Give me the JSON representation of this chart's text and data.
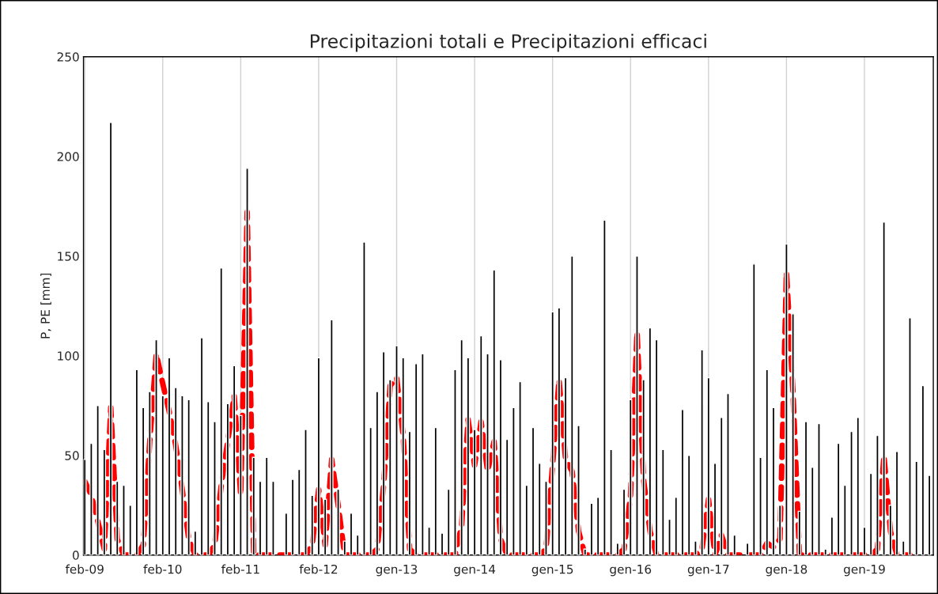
{
  "chart_data": {
    "type": "bar",
    "title": "Precipitazioni totali e Precipitazioni efficaci",
    "ylabel": "P, PE [mm]",
    "categories": [
      "feb-09",
      null,
      null,
      null,
      null,
      null,
      null,
      null,
      null,
      null,
      null,
      null,
      "feb-10",
      null,
      null,
      null,
      null,
      null,
      null,
      null,
      null,
      null,
      null,
      null,
      "feb-11",
      null,
      null,
      null,
      null,
      null,
      null,
      null,
      null,
      null,
      null,
      null,
      "feb-12",
      null,
      null,
      null,
      null,
      null,
      null,
      null,
      null,
      null,
      null,
      null,
      "gen-13",
      null,
      null,
      null,
      null,
      null,
      null,
      null,
      null,
      null,
      null,
      null,
      "gen-14",
      null,
      null,
      null,
      null,
      null,
      null,
      null,
      null,
      null,
      null,
      null,
      "gen-15",
      null,
      null,
      null,
      null,
      null,
      null,
      null,
      null,
      null,
      null,
      null,
      "gen-16",
      null,
      null,
      null,
      null,
      null,
      null,
      null,
      null,
      null,
      null,
      null,
      "gen-17",
      null,
      null,
      null,
      null,
      null,
      null,
      null,
      null,
      null,
      null,
      null,
      "gen-18",
      null,
      null,
      null,
      null,
      null,
      null,
      null,
      null,
      null,
      null,
      null,
      "gen-19",
      null,
      null,
      null,
      null,
      null,
      null,
      null,
      null,
      null,
      null
    ],
    "series": [
      {
        "color": "#000000",
        "values": [
          48,
          56,
          75,
          53,
          217,
          37,
          35,
          25,
          93,
          74,
          82,
          108,
          80,
          99,
          84,
          80,
          78,
          12,
          109,
          77,
          67,
          144,
          76,
          95,
          70,
          194,
          49,
          37,
          49,
          37,
          null,
          21,
          38,
          43,
          63,
          30,
          99,
          28,
          118,
          33,
          7,
          21,
          10,
          157,
          64,
          82,
          102,
          88,
          105,
          99,
          62,
          96,
          101,
          14,
          64,
          11,
          33,
          93,
          108,
          99,
          63,
          110,
          101,
          143,
          98,
          58,
          74,
          87,
          35,
          64,
          46,
          37,
          122,
          124,
          89,
          150,
          65,
          3,
          26,
          29,
          168,
          53,
          6,
          33,
          78,
          150,
          88,
          114,
          108,
          53,
          18,
          29,
          73,
          50,
          7,
          103,
          89,
          46,
          69,
          81,
          10,
          null,
          6,
          146,
          49,
          93,
          74,
          25,
          156,
          121,
          22,
          67,
          44,
          66,
          3,
          19,
          56,
          35,
          62,
          69,
          14,
          41,
          60,
          167,
          25,
          52,
          7,
          119,
          47,
          85,
          40
        ]
      },
      {
        "type": "line",
        "color": "#ff0000",
        "line_style": "dashed",
        "values": [
          37,
          30,
          17,
          3,
          74,
          8,
          0,
          0,
          0,
          5,
          57,
          101,
          86,
          72,
          55,
          33,
          8,
          0,
          0,
          0,
          5,
          35,
          57,
          80,
          30,
          172,
          0,
          0,
          0,
          0,
          0,
          0,
          0,
          0,
          0,
          5,
          33,
          5,
          48,
          25,
          0,
          0,
          0,
          0,
          0,
          3,
          35,
          85,
          89,
          60,
          3,
          0,
          0,
          0,
          0,
          0,
          0,
          0,
          15,
          68,
          45,
          67,
          42,
          57,
          8,
          0,
          0,
          0,
          0,
          0,
          0,
          3,
          45,
          88,
          48,
          42,
          12,
          0,
          0,
          0,
          0,
          0,
          0,
          3,
          30,
          112,
          38,
          12,
          0,
          0,
          0,
          0,
          0,
          0,
          0,
          3,
          28,
          0,
          10,
          0,
          0,
          0,
          0,
          0,
          0,
          6,
          4,
          8,
          142,
          82,
          0,
          0,
          0,
          0,
          0,
          0,
          0,
          0,
          0,
          0,
          0,
          0,
          3,
          50,
          12,
          0,
          0,
          0,
          null,
          null,
          null
        ]
      }
    ],
    "ylim": [
      0,
      250
    ],
    "yticks": [
      0,
      50,
      100,
      150,
      200,
      250
    ],
    "grid": "x"
  }
}
